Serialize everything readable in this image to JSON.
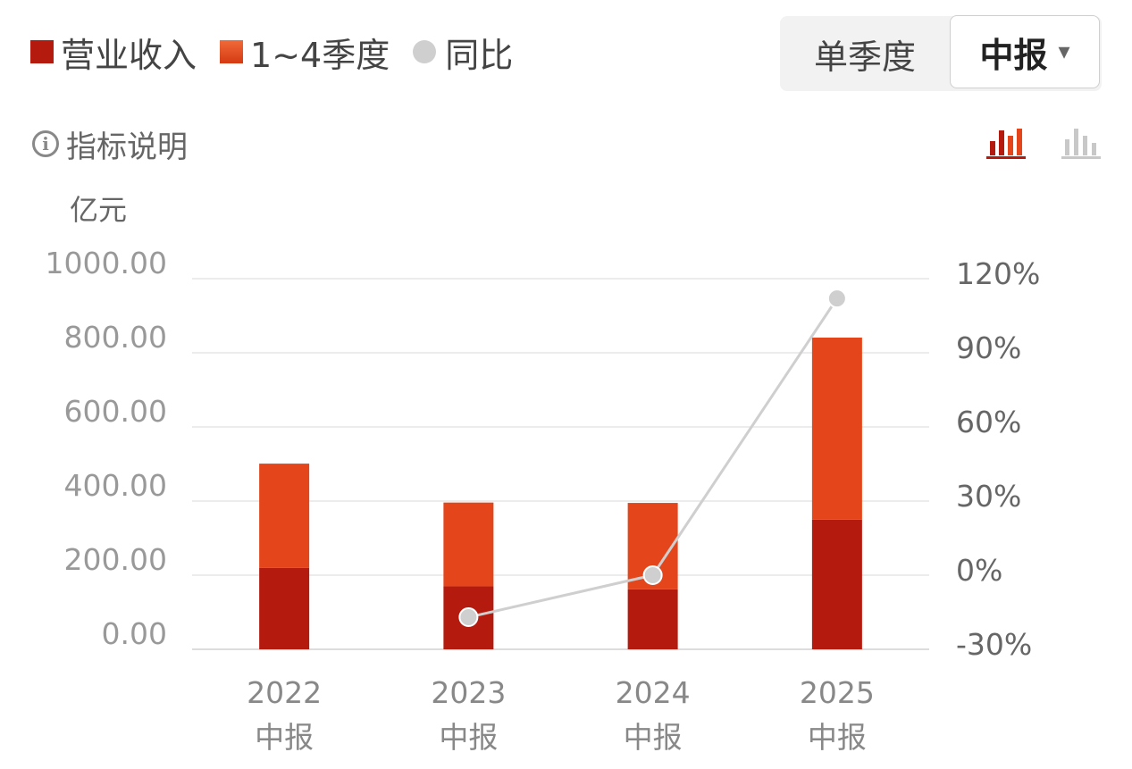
{
  "legend": [
    {
      "label": "营业收入",
      "color": "#b51a0f",
      "shape": "square"
    },
    {
      "label": "1~4季度",
      "color": "#e5451a",
      "shape": "square"
    },
    {
      "label": "同比",
      "color": "#cfcfcf",
      "shape": "circle"
    }
  ],
  "toggle": {
    "single_quarter": "单季度",
    "selected": "中报",
    "caret": "▾"
  },
  "info": {
    "icon_glyph": "i",
    "label": "指标说明"
  },
  "icons": {
    "bar_stacked": "bar-chart-stacked-icon",
    "bar_plain": "bar-chart-icon"
  },
  "colors": {
    "bottom": "#b51a0f",
    "top": "#e5451a",
    "line": "#cfcfcf",
    "grid": "#ececec",
    "active_icon": "#b51a0f",
    "inactive_icon": "#c8c8c8"
  },
  "chart_data": {
    "type": "bar",
    "ylabel": "亿元",
    "categories": [
      {
        "year": "2022",
        "period": "中报"
      },
      {
        "year": "2023",
        "period": "中报"
      },
      {
        "year": "2024",
        "period": "中报"
      },
      {
        "year": "2025",
        "period": "中报"
      }
    ],
    "stacked_values": {
      "bottom": [
        220,
        170,
        162,
        350
      ],
      "top": [
        281,
        226,
        233,
        491
      ]
    },
    "yoy_percent": [
      null,
      -17,
      0,
      112
    ],
    "left_axis": {
      "min": 0,
      "max": 1000,
      "ticks": [
        "1000.00",
        "800.00",
        "600.00",
        "400.00",
        "200.00",
        "0.00"
      ]
    },
    "right_axis": {
      "min": -30,
      "max": 120,
      "ticks": [
        "120%",
        "90%",
        "60%",
        "30%",
        "0%",
        "-30%"
      ]
    },
    "grid": true
  }
}
